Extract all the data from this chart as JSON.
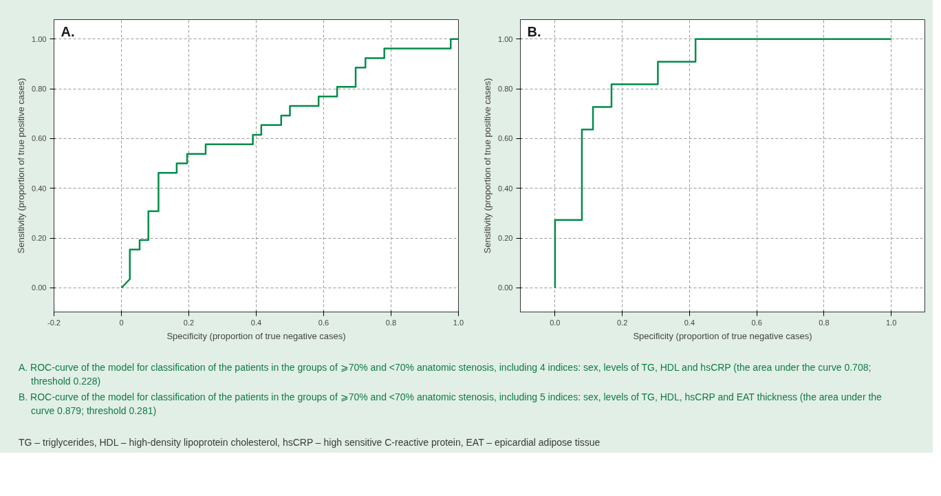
{
  "chart_data": [
    {
      "type": "line",
      "title": "A.",
      "xlabel": "Specificity (proportion of true negative cases)",
      "ylabel": "Sensitivity (proportion of true positive cases)",
      "series": [
        {
          "color": "#008c4a",
          "x": [
            0,
            0.025,
            0.025,
            0.054,
            0.054,
            0.08,
            0.08,
            0.11,
            0.11,
            0.164,
            0.164,
            0.195,
            0.195,
            0.25,
            0.25,
            0.39,
            0.39,
            0.415,
            0.415,
            0.474,
            0.474,
            0.5,
            0.5,
            0.585,
            0.585,
            0.64,
            0.64,
            0.695,
            0.695,
            0.724,
            0.724,
            0.78,
            0.78,
            0.977,
            0.977,
            1
          ],
          "values": [
            0,
            0.035,
            0.154,
            0.154,
            0.192,
            0.192,
            0.308,
            0.308,
            0.462,
            0.462,
            0.5,
            0.5,
            0.538,
            0.538,
            0.577,
            0.577,
            0.615,
            0.615,
            0.654,
            0.654,
            0.692,
            0.692,
            0.731,
            0.731,
            0.769,
            0.769,
            0.808,
            0.808,
            0.885,
            0.885,
            0.923,
            0.923,
            0.962,
            0.962,
            1,
            1
          ]
        }
      ],
      "xlim": [
        -0.2,
        1.0
      ],
      "ylim": [
        -0.097,
        1.078
      ],
      "xticks": [
        {
          "value": -0.2,
          "label": "-0.2"
        },
        {
          "value": 0,
          "label": "0"
        },
        0.2,
        0.4,
        0.6,
        0.8,
        {
          "value": 1,
          "label": "1.0"
        }
      ],
      "yticks": [
        {
          "value": 0,
          "label": "0.00"
        },
        {
          "value": 0.2,
          "label": "0.20"
        },
        {
          "value": 0.4,
          "label": "0.40"
        },
        {
          "value": 0.6,
          "label": "0.60"
        },
        {
          "value": 0.8,
          "label": "0.80"
        },
        {
          "value": 1,
          "label": "1.00"
        }
      ],
      "grid": true,
      "line_style": "solid",
      "marker": "none",
      "annotations": [
        "A. ROC-curve of the model for classification of the patients in the groups of ⩾70% and <70% anatomic stenosis, including 4 indices: sex, levels of TG, HDL and hsCRP (the area under the curve 0.708; threshold 0.228)"
      ]
    },
    {
      "type": "line",
      "title": "B.",
      "xlabel": "Specificity (proportion of true negative cases)",
      "ylabel": "Sensitivity (proportion of true positive cases)",
      "series": [
        {
          "color": "#008c4a",
          "x": [
            0,
            0,
            0.08,
            0.08,
            0.113,
            0.113,
            0.168,
            0.168,
            0.306,
            0.306,
            0.418,
            0.418,
            1
          ],
          "values": [
            0,
            0.273,
            0.273,
            0.636,
            0.636,
            0.727,
            0.727,
            0.818,
            0.818,
            0.909,
            0.909,
            1,
            1
          ]
        }
      ],
      "xlim": [
        -0.103,
        1.1
      ],
      "ylim": [
        -0.097,
        1.078
      ],
      "xticks": [
        {
          "value": 0,
          "label": "0.0"
        },
        0.2,
        0.4,
        0.6,
        0.8,
        {
          "value": 1,
          "label": "1.0"
        }
      ],
      "yticks": [
        {
          "value": 0,
          "label": "0.00"
        },
        {
          "value": 0.2,
          "label": "0.20"
        },
        {
          "value": 0.4,
          "label": "0.40"
        },
        {
          "value": 0.6,
          "label": "0.60"
        },
        {
          "value": 0.8,
          "label": "0.80"
        },
        {
          "value": 1,
          "label": "1.00"
        }
      ],
      "grid": true,
      "line_style": "solid",
      "marker": "none",
      "annotations": [
        "B. ROC-curve of the model for classification of the patients in the groups of ⩾70% and <70% anatomic stenosis, including 5 indices: sex, levels of TG, HDL, hsCRP and EAT thickness (the area under the curve 0.879; threshold 0.281)",
        "TG – triglycerides, HDL – high-density lipoprotein cholesterol, hsCRP – high sensitive C-reactive protein, EAT – epicardial adipose tissue"
      ]
    }
  ]
}
